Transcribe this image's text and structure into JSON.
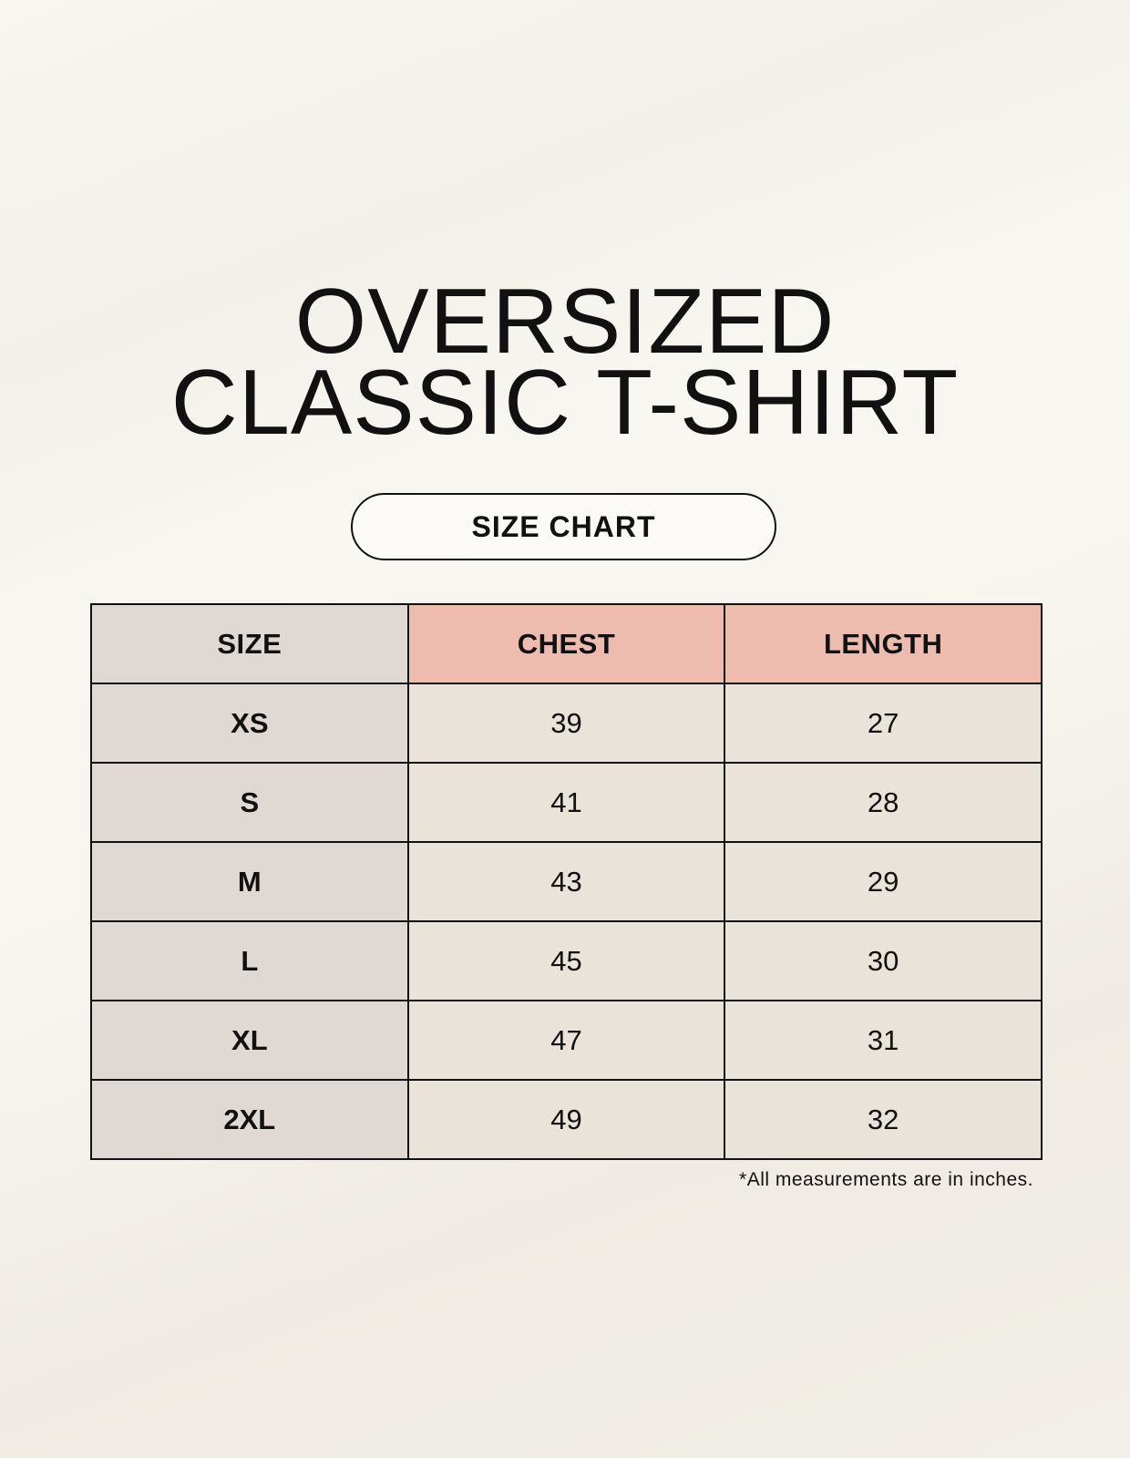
{
  "title": {
    "line1": "OVERSIZED",
    "line2": "CLASSIC T-SHIRT"
  },
  "badge": "SIZE CHART",
  "colors": {
    "size_column": "#e0d9d3",
    "header_accent": "#edbcaf",
    "value_cells": "#eae3d9",
    "border": "#111111"
  },
  "table": {
    "headers": [
      "SIZE",
      "CHEST",
      "LENGTH"
    ],
    "rows": [
      [
        "XS",
        "39",
        "27"
      ],
      [
        "S",
        "41",
        "28"
      ],
      [
        "M",
        "43",
        "29"
      ],
      [
        "L",
        "45",
        "30"
      ],
      [
        "XL",
        "47",
        "31"
      ],
      [
        "2XL",
        "49",
        "32"
      ]
    ]
  },
  "footnote": "*All measurements are in inches."
}
